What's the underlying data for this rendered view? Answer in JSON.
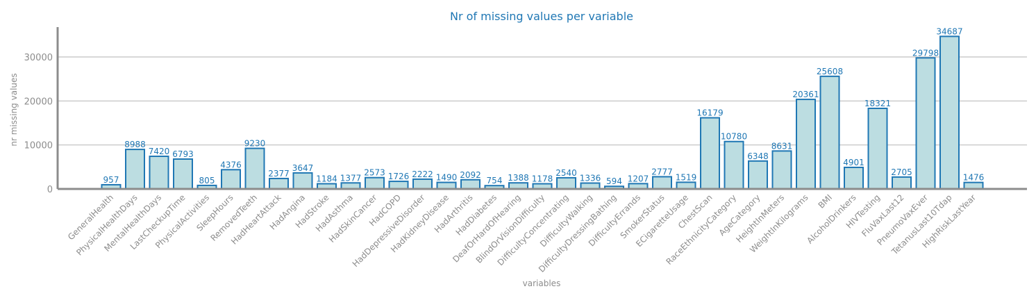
{
  "chart_data": {
    "type": "bar",
    "title": "Nr of missing values per variable",
    "xlabel": "variables",
    "ylabel": "nr missing values",
    "ylim": [
      0,
      36800
    ],
    "yticks": [
      0,
      10000,
      20000,
      30000
    ],
    "grid": "horizontal",
    "colors": {
      "bar_fill": "#bcdde1",
      "bar_edge": "#1f77b4",
      "title": "#1f77b4",
      "labels": "#1f77b4",
      "axis": "#8c8c8c"
    },
    "categories": [
      "GeneralHealth",
      "PhysicalHealthDays",
      "MentalHealthDays",
      "LastCheckupTime",
      "PhysicalActivities",
      "SleepHours",
      "RemovedTeeth",
      "HadHeartAttack",
      "HadAngina",
      "HadStroke",
      "HadAsthma",
      "HadSkinCancer",
      "HadCOPD",
      "HadDepressiveDisorder",
      "HadKidneyDisease",
      "HadArthritis",
      "HadDiabetes",
      "DeafOrHardOfHearing",
      "BlindOrVisionDifficulty",
      "DifficultyConcentrating",
      "DifficultyWalking",
      "DifficultyDressingBathing",
      "DifficultyErrands",
      "SmokerStatus",
      "ECigaretteUsage",
      "ChestScan",
      "RaceEthnicityCategory",
      "AgeCategory",
      "HeightInMeters",
      "WeightInKilograms",
      "BMI",
      "AlcoholDrinkers",
      "HIVTesting",
      "FluVaxLast12",
      "PneumoVaxEver",
      "TetanusLast10Tdap",
      "HighRiskLastYear"
    ],
    "values": [
      957,
      8988,
      7420,
      6793,
      805,
      4376,
      9230,
      2377,
      3647,
      1184,
      1377,
      2573,
      1726,
      2222,
      1490,
      2092,
      754,
      1388,
      1178,
      2540,
      1336,
      594,
      1207,
      2777,
      1519,
      16179,
      10780,
      6348,
      8631,
      20361,
      25608,
      4901,
      18321,
      2705,
      29798,
      34687,
      1476
    ]
  }
}
